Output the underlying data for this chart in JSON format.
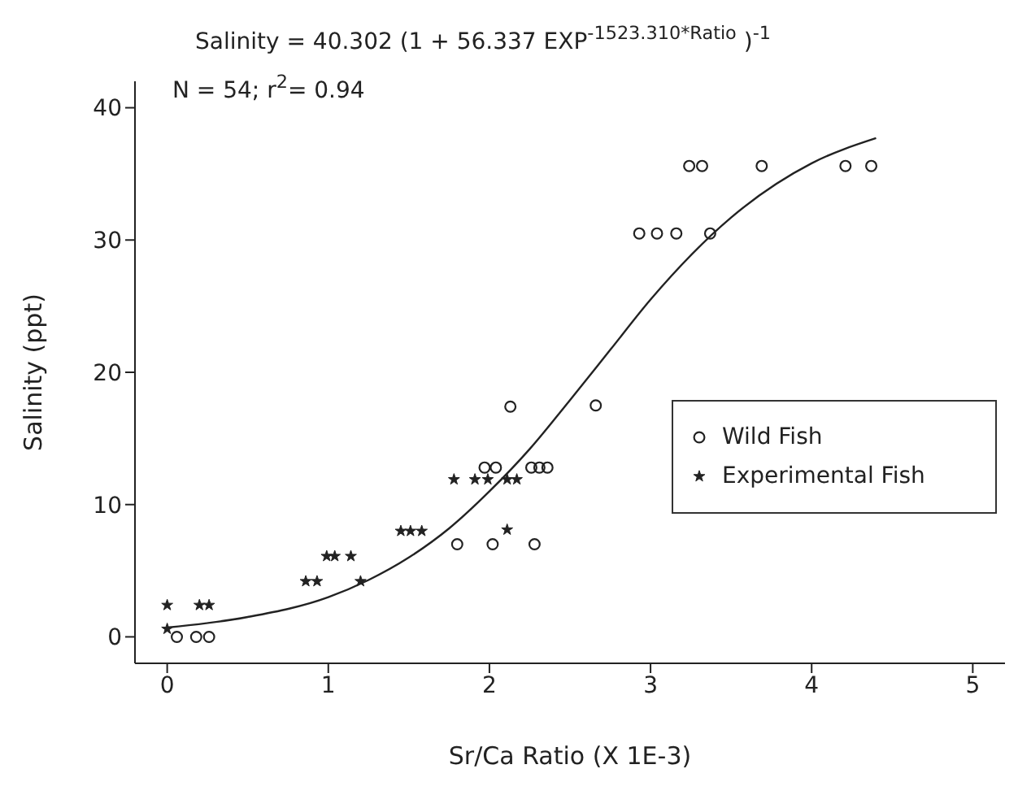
{
  "chart_data": {
    "type": "scatter",
    "title": "Salinity = 40.302 (1 + 56.337 EXP$^{-1523.310*Ratio}$ )$^{-1}$",
    "annotations": [
      "N = 54; r$^{2}$= 0.94"
    ],
    "xlabel": "Sr/Ca Ratio (X 1E-3)",
    "ylabel": "Salinity (ppt)",
    "xlim": [
      -0.2,
      5.2
    ],
    "xticks": [
      0,
      1,
      2,
      3,
      4,
      5
    ],
    "ylim": [
      -2,
      42
    ],
    "yticks": [
      0,
      10,
      20,
      30,
      40
    ],
    "grid": false,
    "legend": "right",
    "series": [
      {
        "name": "Wild Fish",
        "marker": "circle",
        "color": "#222222",
        "x": [
          0.06,
          0.18,
          0.26,
          1.8,
          2.02,
          2.28,
          1.97,
          2.04,
          2.26,
          2.31,
          2.36,
          2.13,
          2.66,
          2.93,
          3.04,
          3.16,
          3.37,
          3.24,
          3.32,
          3.69,
          4.21,
          4.37
        ],
        "values": [
          0,
          0,
          0,
          7,
          7,
          7,
          12.8,
          12.8,
          12.8,
          12.8,
          12.8,
          17.4,
          17.5,
          30.5,
          30.5,
          30.5,
          30.5,
          35.6,
          35.6,
          35.6,
          35.6,
          35.6
        ]
      },
      {
        "name": "Experimental Fish",
        "marker": "star",
        "color": "#222222",
        "x": [
          0,
          0,
          0.2,
          0.26,
          0.86,
          0.93,
          1.2,
          0.99,
          1.04,
          1.14,
          1.45,
          1.51,
          1.58,
          1.78,
          1.91,
          1.99,
          2.11,
          2.17,
          2.11
        ],
        "values": [
          0.6,
          2.4,
          2.4,
          2.4,
          4.2,
          4.2,
          4.2,
          6.1,
          6.1,
          6.1,
          8,
          8,
          8,
          11.9,
          11.9,
          11.9,
          11.9,
          11.9,
          8.1
        ]
      },
      {
        "type": "line",
        "marker": "none",
        "line_style": "solid",
        "color": "#222222",
        "x": [
          0,
          0.5,
          1,
          1.25,
          1.5,
          1.75,
          2,
          2.25,
          2.5,
          2.75,
          3,
          3.5,
          4,
          4.4
        ],
        "values": [
          0.7,
          1.5,
          3,
          4.3,
          6,
          8.2,
          11,
          14.2,
          17.9,
          21.7,
          25.5,
          31.7,
          35.8,
          37.7
        ]
      }
    ]
  }
}
